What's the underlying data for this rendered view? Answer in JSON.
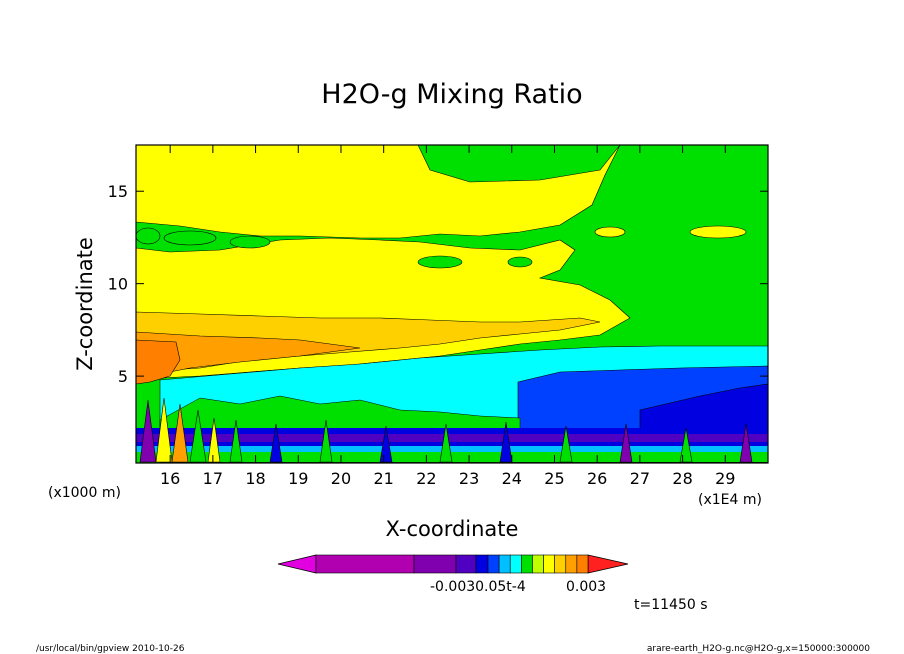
{
  "chart_data": {
    "type": "contour",
    "title": "H2O-g Mixing Ratio",
    "xlabel": "X-coordinate",
    "ylabel": "Z-coordinate",
    "x_unit": "(x1E4 m)",
    "y_unit": "(x1000 m)",
    "xlim": [
      15.2,
      30.0
    ],
    "ylim": [
      0.3,
      17.5
    ],
    "x_ticks": [
      "16",
      "17",
      "18",
      "19",
      "20",
      "21",
      "22",
      "23",
      "24",
      "25",
      "26",
      "27",
      "28",
      "29"
    ],
    "y_ticks": [
      "5",
      "10",
      "15"
    ],
    "legend_ticks": [
      "-0.003",
      "0.05t",
      "-4",
      "0.003"
    ],
    "legend_overlap_text": "-0.0030.05t-4",
    "contour_colors": [
      "#e000e0",
      "#b000b0",
      "#8000b0",
      "#5000c0",
      "#0000e0",
      "#0040ff",
      "#00c0ff",
      "#00ffff",
      "#00e000",
      "#c0ff00",
      "#ffff00",
      "#ffd000",
      "#ffa000",
      "#ff8000",
      "#ff2020"
    ],
    "annotation": "t=11450 s",
    "footer_left": "/usr/local/bin/gpview  2010-10-26",
    "footer_right": "arare-earth_H2O-g.nc@H2O-g,x=150000:300000"
  }
}
